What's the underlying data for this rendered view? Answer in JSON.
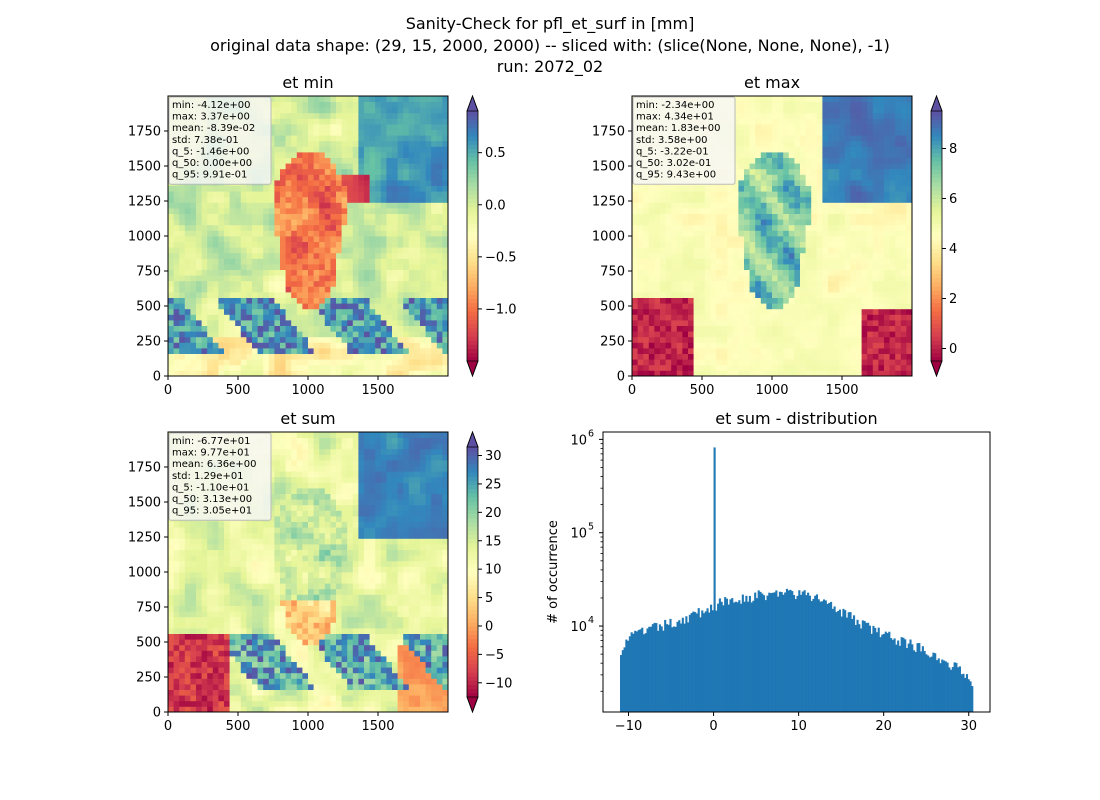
{
  "suptitle": {
    "line1": "Sanity-Check for pfl_et_surf in [mm]",
    "line2": "original data shape: (29, 15, 2000, 2000) -- sliced with: (slice(None, None, None), -1)",
    "line3": "run: 2072_02"
  },
  "colormap": "Spectral",
  "chart_data": [
    {
      "type": "heatmap",
      "title": "et min",
      "xlim": [
        0,
        2000
      ],
      "ylim": [
        0,
        2000
      ],
      "xticks": [
        0,
        500,
        1000,
        1500
      ],
      "yticks": [
        0,
        250,
        500,
        750,
        1000,
        1250,
        1500,
        1750
      ],
      "colorbar": {
        "range": [
          -1.5,
          0.9
        ],
        "ticks": [
          -1.0,
          -0.5,
          0.0,
          0.5
        ],
        "tick_labels": [
          "−1.0",
          "−0.5",
          "0.0",
          "0.5"
        ],
        "extend": "both"
      },
      "stats": [
        "min: -4.12e+00",
        "max: 3.37e+00",
        "mean: -8.39e-02",
        "std: 7.38e-01",
        "q_5: -1.46e+00",
        "q_50: 0.00e+00",
        "q_95: 9.91e-01"
      ]
    },
    {
      "type": "heatmap",
      "title": "et max",
      "xlim": [
        0,
        2000
      ],
      "ylim": [
        0,
        2000
      ],
      "xticks": [
        0,
        500,
        1000,
        1500
      ],
      "yticks": [
        0,
        250,
        500,
        750,
        1000,
        1250,
        1500,
        1750
      ],
      "colorbar": {
        "range": [
          -0.5,
          9.5
        ],
        "ticks": [
          0,
          2,
          4,
          6,
          8
        ],
        "tick_labels": [
          "0",
          "2",
          "4",
          "6",
          "8"
        ],
        "extend": "both"
      },
      "stats": [
        "min: -2.34e+00",
        "max: 4.34e+01",
        "mean: 1.83e+00",
        "std: 3.58e+00",
        "q_5: -3.22e-01",
        "q_50: 3.02e-01",
        "q_95: 9.43e+00"
      ]
    },
    {
      "type": "heatmap",
      "title": "et sum",
      "xlim": [
        0,
        2000
      ],
      "ylim": [
        0,
        2000
      ],
      "xticks": [
        0,
        500,
        1000,
        1500
      ],
      "yticks": [
        0,
        250,
        500,
        750,
        1000,
        1250,
        1500,
        1750
      ],
      "colorbar": {
        "range": [
          -12.5,
          31.5
        ],
        "ticks": [
          -10,
          -5,
          0,
          5,
          10,
          15,
          20,
          25,
          30
        ],
        "tick_labels": [
          "−10",
          "−5",
          "0",
          "5",
          "10",
          "15",
          "20",
          "25",
          "30"
        ],
        "extend": "both"
      },
      "stats": [
        "min: -6.77e+01",
        "max: 9.77e+01",
        "mean: 6.36e+00",
        "std: 1.29e+01",
        "q_5: -1.10e+01",
        "q_50: 3.13e+00",
        "q_95: 3.05e+01"
      ]
    },
    {
      "type": "bar",
      "title": "et sum - distribution",
      "ylabel": "# of occurrence",
      "yscale": "log",
      "xlim": [
        -13,
        32.5
      ],
      "ylim": [
        1200,
        1200000
      ],
      "xticks": [
        -10,
        0,
        10,
        20,
        30
      ],
      "xtick_labels": [
        "−10",
        "0",
        "10",
        "20",
        "30"
      ],
      "ytick_labels": [
        "10",
        "10",
        "10"
      ],
      "ytick_exponents": [
        "4",
        "5",
        "6"
      ],
      "yticks": [
        10000,
        100000,
        1000000
      ],
      "color": "#1f77b4",
      "bin_range": [
        -11,
        30.5
      ],
      "nbins": 200,
      "spike": {
        "x": 0,
        "value": 820000
      },
      "profile_x": [
        -11,
        -10,
        -8,
        -6,
        -4,
        -2,
        0,
        2,
        4,
        6,
        8,
        10,
        12,
        14,
        16,
        18,
        20,
        22,
        24,
        26,
        28,
        30,
        30.5
      ],
      "profile_y": [
        5500,
        7500,
        9000,
        10000,
        11500,
        13500,
        16500,
        19000,
        20500,
        21500,
        23000,
        22000,
        20000,
        17500,
        12500,
        10000,
        8000,
        7000,
        6000,
        5000,
        3800,
        3000,
        2500
      ]
    }
  ]
}
